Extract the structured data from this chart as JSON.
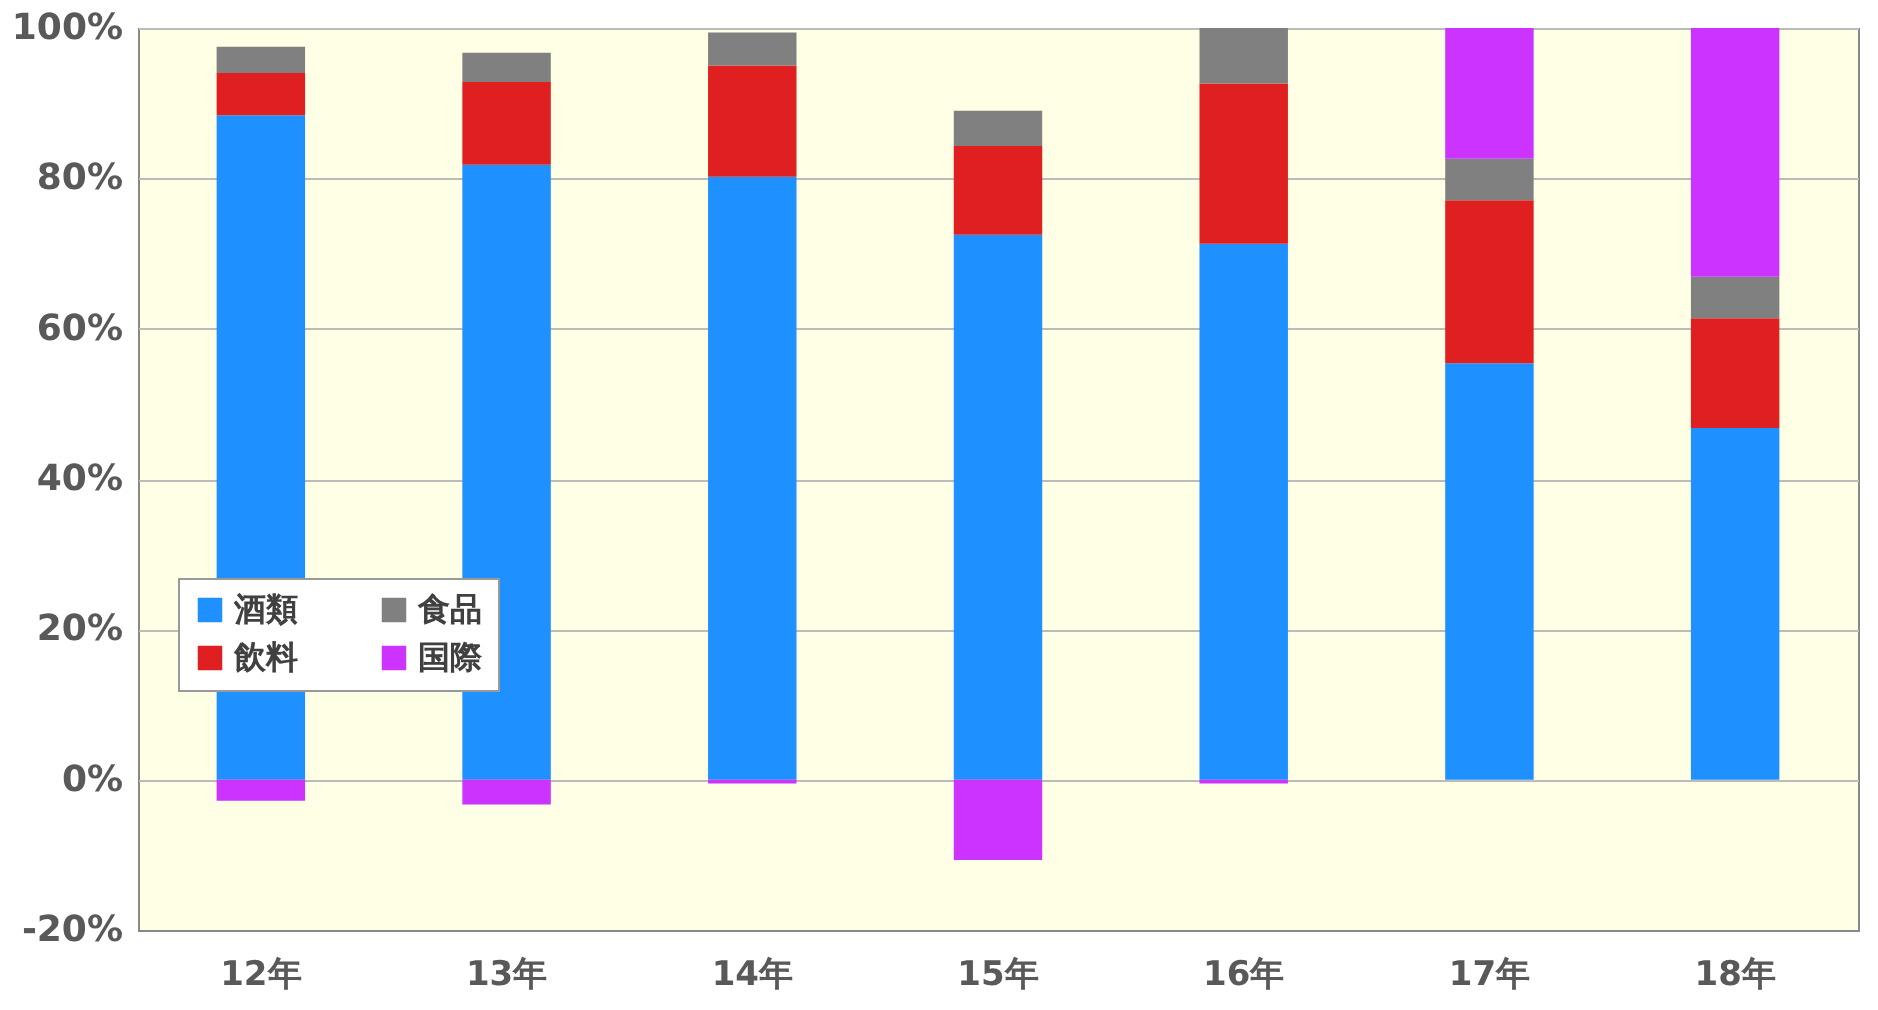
{
  "chart_data": {
    "type": "bar",
    "stacked": true,
    "categories": [
      "12年",
      "13年",
      "14年",
      "15年",
      "16年",
      "17年",
      "18年"
    ],
    "series": [
      {
        "name": "酒類",
        "color": "#1e90ff",
        "values": [
          88.4,
          81.8,
          80.2,
          72.5,
          71.3,
          55.4,
          46.8
        ]
      },
      {
        "name": "飲料",
        "color": "#e02020",
        "values": [
          5.6,
          11.0,
          14.8,
          11.8,
          21.3,
          21.7,
          14.6
        ]
      },
      {
        "name": "食品",
        "color": "#808080",
        "values": [
          3.5,
          3.9,
          4.4,
          4.7,
          7.4,
          5.5,
          5.5
        ]
      },
      {
        "name": "国際",
        "color": "#cc33ff",
        "values": [
          -2.8,
          -3.3,
          -0.5,
          -10.7,
          -0.5,
          17.4,
          33.1
        ]
      }
    ],
    "ylim": [
      -20,
      100
    ],
    "yticks": [
      {
        "value": -20,
        "label": "-20%"
      },
      {
        "value": 0,
        "label": "0%"
      },
      {
        "value": 20,
        "label": "20%"
      },
      {
        "value": 40,
        "label": "40%"
      },
      {
        "value": 60,
        "label": "60%"
      },
      {
        "value": 80,
        "label": "80%"
      },
      {
        "value": 100,
        "label": "100%"
      }
    ],
    "grid": "y",
    "legend": "bottom left"
  }
}
